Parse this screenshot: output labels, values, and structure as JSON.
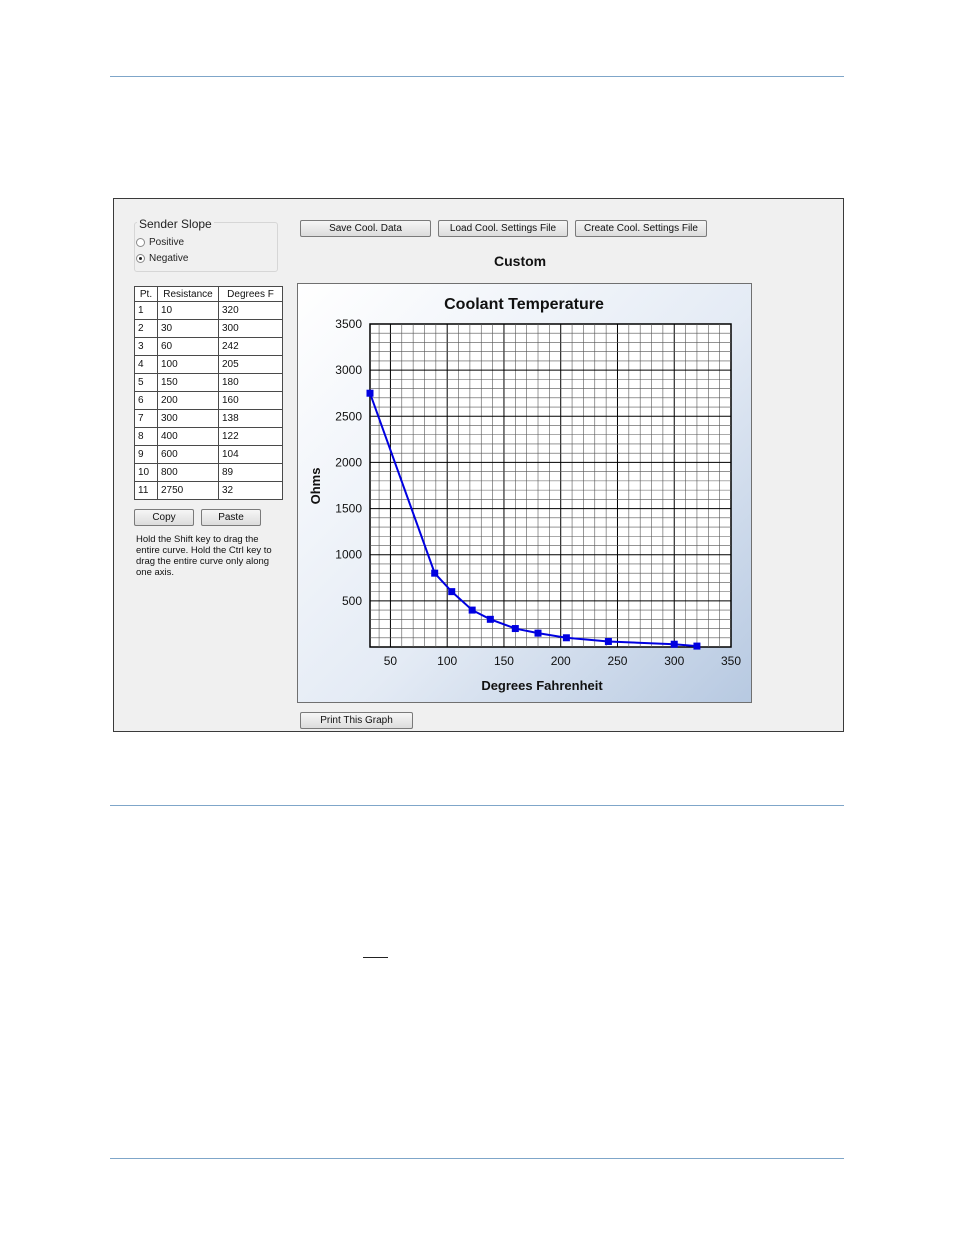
{
  "window": {
    "sender_slope": {
      "title": "Sender Slope",
      "options": [
        {
          "label": "Positive",
          "selected": false
        },
        {
          "label": "Negative",
          "selected": true
        }
      ]
    },
    "buttons": {
      "save": "Save Cool. Data",
      "load": "Load Cool. Settings File",
      "create": "Create Cool. Settings File",
      "copy": "Copy",
      "paste": "Paste",
      "print": "Print This Graph"
    },
    "curve_name": "Custom",
    "table": {
      "headers": [
        "Pt.",
        "Resistance",
        "Degrees F"
      ],
      "rows": [
        [
          "1",
          "10",
          "320"
        ],
        [
          "2",
          "30",
          "300"
        ],
        [
          "3",
          "60",
          "242"
        ],
        [
          "4",
          "100",
          "205"
        ],
        [
          "5",
          "150",
          "180"
        ],
        [
          "6",
          "200",
          "160"
        ],
        [
          "7",
          "300",
          "138"
        ],
        [
          "8",
          "400",
          "122"
        ],
        [
          "9",
          "600",
          "104"
        ],
        [
          "10",
          "800",
          "89"
        ],
        [
          "11",
          "2750",
          "32"
        ]
      ]
    },
    "hint": "Hold the Shift key to drag the entire curve. Hold the Ctrl key to drag the entire curve only along one axis."
  },
  "chart_data": {
    "type": "line",
    "title": "Coolant Temperature",
    "xlabel": "Degrees Fahrenheit",
    "ylabel": "Ohms",
    "xlim": [
      32,
      350
    ],
    "ylim": [
      0,
      3500
    ],
    "xticks": [
      50,
      100,
      150,
      200,
      250,
      300,
      350
    ],
    "yticks": [
      500,
      1000,
      1500,
      2000,
      2500,
      3000,
      3500
    ],
    "grid": true,
    "series": [
      {
        "color": "#0000e0",
        "x": [
          32,
          89,
          104,
          122,
          138,
          160,
          180,
          205,
          242,
          300,
          320
        ],
        "y": [
          2750,
          800,
          600,
          400,
          300,
          200,
          150,
          100,
          60,
          30,
          10
        ]
      }
    ]
  }
}
